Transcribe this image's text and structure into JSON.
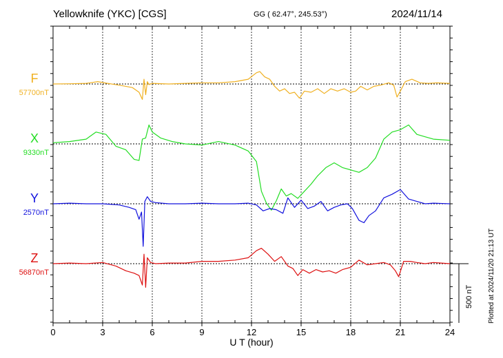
{
  "header": {
    "title": "Yellowknife (YKC)  [CGS]",
    "coords": "GG ( 62.47°, 245.53°)",
    "date": "2024/11/14"
  },
  "footer": {
    "plotted": "Plotted at 2024/11/20 21:13 UT"
  },
  "chart_data": {
    "type": "line",
    "xlabel": "U T (hour)",
    "xlim": [
      0,
      24
    ],
    "x_ticks": [
      "0",
      "3",
      "6",
      "9",
      "12",
      "15",
      "18",
      "21",
      "24"
    ],
    "grid": true,
    "scale_bar": {
      "label": "500 nT",
      "value": 500
    },
    "series": [
      {
        "name": "F",
        "baseline_label": "57700nT",
        "color": "#f0b020",
        "x": [
          0,
          1,
          2,
          2.7,
          3.3,
          4,
          4.8,
          5.2,
          5.4,
          5.5,
          5.6,
          5.7,
          5.8,
          6.0,
          7,
          8,
          9,
          10,
          11,
          11.8,
          12.3,
          12.5,
          12.8,
          13.1,
          13.4,
          13.7,
          14.0,
          14.3,
          14.6,
          14.9,
          15.2,
          15.6,
          16.0,
          16.4,
          16.8,
          17.2,
          17.6,
          18.0,
          18.3,
          18.6,
          19.0,
          19.4,
          19.8,
          20.3,
          20.6,
          20.8,
          21.0,
          21.3,
          21.7,
          22.2,
          22.7,
          23.2,
          24
        ],
        "values": [
          0,
          2,
          5,
          20,
          5,
          -10,
          -30,
          -70,
          -130,
          40,
          -90,
          20,
          -5,
          5,
          0,
          5,
          10,
          10,
          20,
          40,
          95,
          105,
          60,
          40,
          -20,
          -60,
          -40,
          -80,
          -70,
          -120,
          -60,
          -70,
          -40,
          -80,
          -40,
          -60,
          -40,
          -70,
          -60,
          -20,
          -50,
          -20,
          -10,
          10,
          -10,
          -110,
          -60,
          20,
          40,
          10,
          5,
          10,
          5
        ]
      },
      {
        "name": "X",
        "baseline_label": "9330nT",
        "color": "#22dd22",
        "x": [
          0,
          1,
          2,
          2.6,
          3.2,
          3.8,
          4.4,
          4.9,
          5.2,
          5.4,
          5.6,
          5.8,
          6.0,
          6.5,
          7.2,
          8,
          9,
          10,
          11,
          11.8,
          12.3,
          12.6,
          12.9,
          13.2,
          13.5,
          13.8,
          14.1,
          14.4,
          14.8,
          15.2,
          15.6,
          16.0,
          16.5,
          17.0,
          17.5,
          18.0,
          18.5,
          19.0,
          19.5,
          20.0,
          20.5,
          21.0,
          21.5,
          22.0,
          22.5,
          23,
          24
        ],
        "values": [
          10,
          20,
          40,
          100,
          80,
          -20,
          -50,
          -130,
          -140,
          40,
          50,
          160,
          100,
          50,
          20,
          0,
          -10,
          20,
          -10,
          -60,
          -150,
          -400,
          -500,
          -560,
          -480,
          -380,
          -440,
          -420,
          -460,
          -400,
          -340,
          -270,
          -200,
          -160,
          -200,
          -220,
          -240,
          -200,
          -120,
          40,
          100,
          120,
          160,
          80,
          60,
          40,
          30
        ]
      },
      {
        "name": "Y",
        "baseline_label": "2570nT",
        "color": "#1010dd",
        "x": [
          0,
          1,
          2,
          3,
          4,
          4.6,
          5.0,
          5.2,
          5.35,
          5.45,
          5.55,
          5.7,
          5.9,
          6.2,
          7,
          8,
          9,
          10,
          11,
          11.8,
          12.3,
          12.7,
          13.1,
          13.5,
          13.9,
          14.2,
          14.6,
          15.0,
          15.4,
          15.8,
          16.2,
          16.6,
          17.0,
          17.4,
          17.8,
          18.1,
          18.5,
          18.8,
          19.1,
          19.5,
          20.0,
          20.5,
          21.0,
          21.5,
          22.0,
          22.5,
          23,
          24
        ],
        "values": [
          0,
          5,
          0,
          0,
          -10,
          -30,
          -50,
          -130,
          -70,
          -360,
          20,
          60,
          20,
          10,
          0,
          0,
          5,
          0,
          0,
          5,
          -10,
          -60,
          -40,
          -50,
          -80,
          50,
          -30,
          30,
          -40,
          -20,
          20,
          -60,
          -30,
          -10,
          0,
          -40,
          -140,
          -160,
          -100,
          -60,
          50,
          80,
          120,
          40,
          20,
          0,
          5,
          0
        ]
      },
      {
        "name": "Z",
        "baseline_label": "56870nT",
        "color": "#dd1010",
        "x": [
          0,
          1,
          2,
          3,
          3.8,
          4.4,
          4.9,
          5.2,
          5.4,
          5.5,
          5.6,
          5.7,
          5.9,
          6.2,
          7,
          8,
          9,
          10,
          11,
          11.8,
          12.3,
          12.6,
          13.0,
          13.4,
          13.8,
          14.2,
          14.5,
          14.8,
          15.1,
          15.5,
          15.9,
          16.3,
          16.7,
          17.1,
          17.5,
          18.0,
          18.5,
          19.0,
          19.5,
          20.0,
          20.4,
          20.7,
          20.9,
          21.2,
          21.6,
          22.0,
          22.5,
          23,
          24
        ],
        "values": [
          0,
          5,
          0,
          10,
          -20,
          -60,
          -80,
          -100,
          -180,
          80,
          -200,
          50,
          10,
          0,
          5,
          5,
          20,
          20,
          30,
          50,
          110,
          130,
          80,
          20,
          60,
          -20,
          -40,
          -100,
          -50,
          -80,
          -50,
          -70,
          -60,
          -80,
          -50,
          -30,
          30,
          -10,
          0,
          10,
          -10,
          -60,
          -110,
          20,
          20,
          10,
          0,
          10,
          0
        ]
      }
    ]
  }
}
